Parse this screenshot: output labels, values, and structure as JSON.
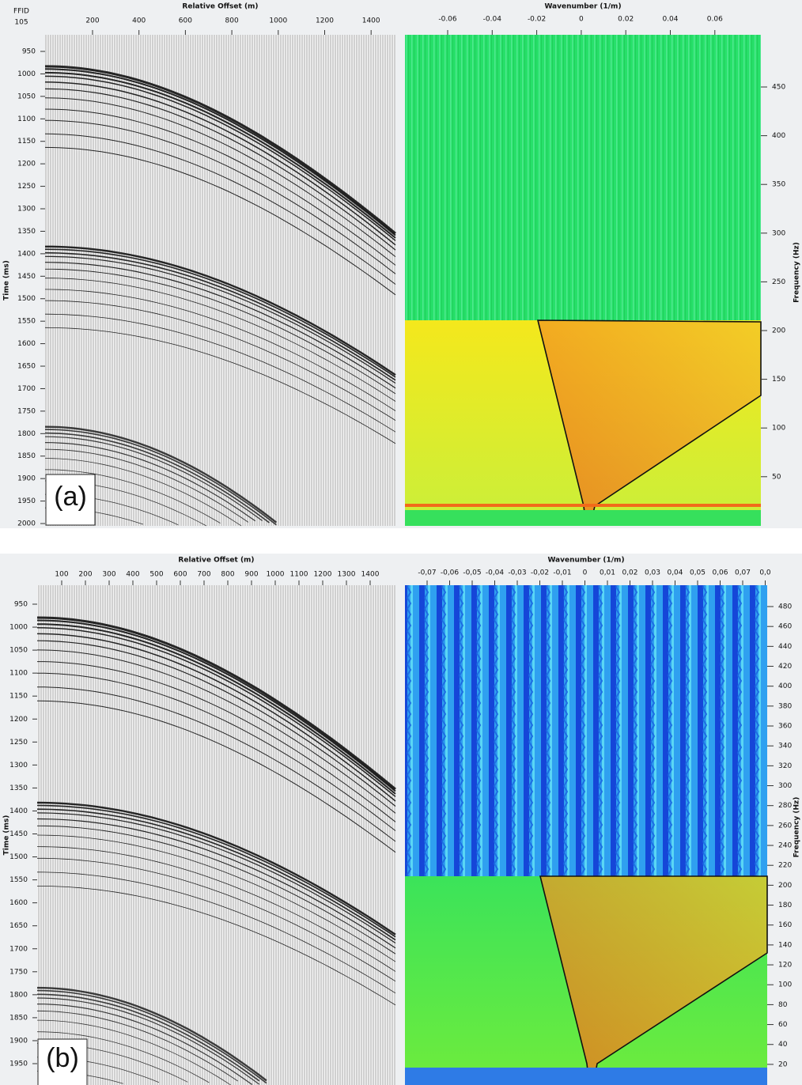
{
  "panels": [
    {
      "label": "(a)",
      "header": {
        "line1": "FFID",
        "line2": "105"
      },
      "gather": {
        "x_title": "Relative Offset (m)",
        "x_ticks": [
          200,
          400,
          600,
          800,
          1000,
          1200,
          1400
        ],
        "y_title": "Time (ms)",
        "y_ticks": [
          950,
          1000,
          1050,
          1100,
          1150,
          1200,
          1250,
          1300,
          1350,
          1400,
          1450,
          1500,
          1550,
          1600,
          1650,
          1700,
          1750,
          1800,
          1850,
          1900,
          1950,
          2000
        ]
      },
      "spectrum": {
        "x_title": "Wavenumber (1/m)",
        "x_ticks": [
          "-0.06",
          "-0.04",
          "-0.02",
          "0",
          "0.02",
          "0.04",
          "0.06"
        ],
        "y_title": "Frequency (Hz)",
        "y_ticks": [
          450,
          400,
          350,
          300,
          250,
          200,
          150,
          100,
          50
        ]
      }
    },
    {
      "label": "(b)",
      "gather": {
        "x_title": "Relative Offset (m)",
        "x_ticks": [
          100,
          200,
          300,
          400,
          500,
          600,
          700,
          800,
          900,
          1000,
          1100,
          1200,
          1300,
          1400
        ],
        "y_title": "Time (ms)",
        "y_ticks": [
          950,
          1000,
          1050,
          1100,
          1150,
          1200,
          1250,
          1300,
          1350,
          1400,
          1450,
          1500,
          1550,
          1600,
          1650,
          1700,
          1750,
          1800,
          1850,
          1900,
          1950
        ]
      },
      "spectrum": {
        "x_title": "Wavenumber (1/m)",
        "x_ticks": [
          "-0,07",
          "-0,06",
          "-0,05",
          "-0,04",
          "-0,03",
          "-0,02",
          "-0,01",
          "0",
          "0,01",
          "0,02",
          "0,03",
          "0,04",
          "0,05",
          "0,06",
          "0,07",
          "0,0"
        ],
        "y_title": "Frequency (Hz)",
        "y_ticks": [
          480,
          460,
          440,
          420,
          400,
          380,
          360,
          340,
          320,
          300,
          280,
          260,
          240,
          220,
          200,
          180,
          160,
          140,
          120,
          100,
          80,
          60,
          40,
          20
        ]
      }
    }
  ]
}
